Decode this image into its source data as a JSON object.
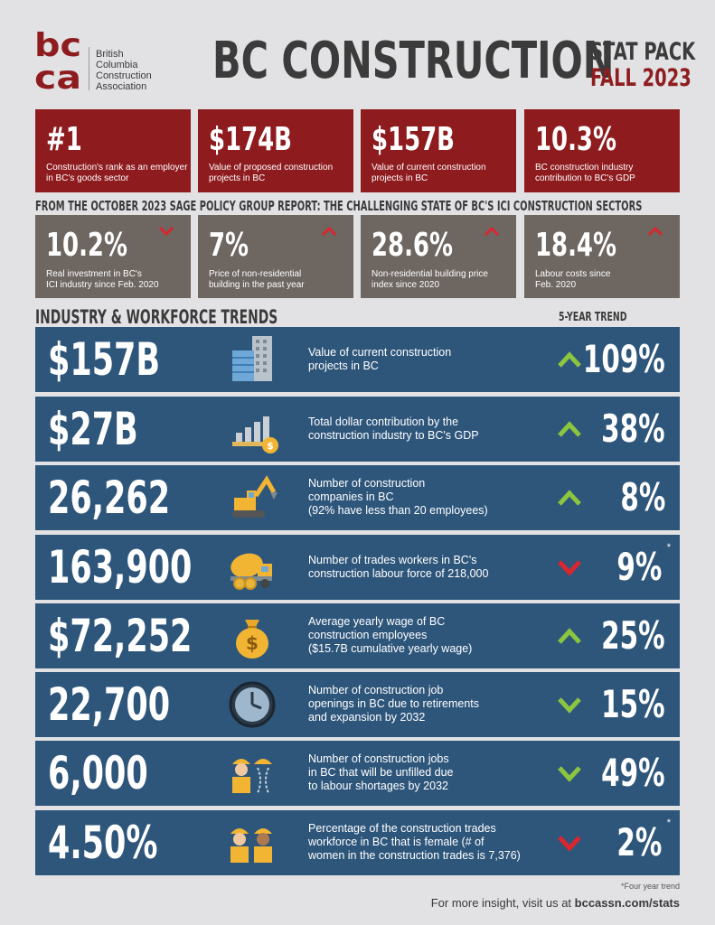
{
  "logo": {
    "mark_top": "bc",
    "mark_bottom": "ca",
    "lines": [
      "British",
      "Columbia",
      "Construction",
      "Association"
    ]
  },
  "header": {
    "title": "BC CONSTRUCTION",
    "stat_pack": "STAT PACK",
    "season": "FALL 2023"
  },
  "colors": {
    "red": "#8e1c1f",
    "taupe": "#6e6661",
    "navy": "#2e567b",
    "up_green": "#8cc63f",
    "down_red": "#d9262f"
  },
  "red_stats": [
    {
      "value": "#1",
      "label": "Construction's rank as an employer in BC's goods sector"
    },
    {
      "value": "$174B",
      "label": "Value of proposed construction projects in BC"
    },
    {
      "value": "$157B",
      "label": "Value of current construction projects in BC"
    },
    {
      "value": "10.3%",
      "label": "BC construction industry contribution to BC's GDP"
    }
  ],
  "report_heading": "FROM THE OCTOBER 2023 SAGE POLICY GROUP REPORT: THE CHALLENGING STATE OF BC'S ICI CONSTRUCTION SECTORS",
  "gray_stats": [
    {
      "value": "10.2%",
      "direction": "down",
      "label_1": "Real investment in BC's",
      "label_2": "ICI industry since Feb. 2020"
    },
    {
      "value": "7%",
      "direction": "up",
      "label_1": "Price of non-residential",
      "label_2": "building in the past year"
    },
    {
      "value": "28.6%",
      "direction": "up",
      "label_1": "Non-residential building price",
      "label_2": "index since 2020"
    },
    {
      "value": "18.4%",
      "direction": "up",
      "label_1": "Labour costs since",
      "label_2": "Feb. 2020"
    }
  ],
  "trends": {
    "heading": "INDUSTRY & WORKFORCE TRENDS",
    "column_label": "5-YEAR TREND",
    "rows": [
      {
        "value": "$157B",
        "icon": "buildings-icon",
        "lines": [
          "Value of current construction",
          "projects in BC"
        ],
        "direction": "up",
        "pct": "109%",
        "star": ""
      },
      {
        "value": "$27B",
        "icon": "bar-chart-coin-icon",
        "lines": [
          "Total dollar contribution by the",
          "construction industry to BC's GDP"
        ],
        "direction": "up",
        "pct": "38%",
        "star": ""
      },
      {
        "value": "26,262",
        "icon": "excavator-icon",
        "lines": [
          "Number of construction",
          "companies in BC",
          "(92% have less than 20 employees)"
        ],
        "direction": "up",
        "pct": "8%",
        "star": ""
      },
      {
        "value": "163,900",
        "icon": "cement-mixer-icon",
        "lines": [
          "Number of trades workers in BC's",
          "construction labour force of 218,000"
        ],
        "direction": "down_red",
        "pct": "9%",
        "star": "*"
      },
      {
        "value": "$72,252",
        "icon": "money-bag-icon",
        "lines": [
          "Average yearly wage of BC",
          "construction employees",
          "($15.7B cumulative yearly wage)"
        ],
        "direction": "up",
        "pct": "25%",
        "star": ""
      },
      {
        "value": "22,700",
        "icon": "clock-icon",
        "lines": [
          "Number of construction job",
          "openings in BC due to retirements",
          "and expansion by 2032"
        ],
        "direction": "down_green",
        "pct": "15%",
        "star": ""
      },
      {
        "value": "6,000",
        "icon": "workers-icon",
        "lines": [
          "Number of construction jobs",
          "in BC that will be unfilled due",
          "to labour shortages by 2032"
        ],
        "direction": "down_green",
        "pct": "49%",
        "star": ""
      },
      {
        "value": "4.50%",
        "icon": "female-workers-icon",
        "lines": [
          "Percentage of the construction trades",
          "workforce in BC that is female (# of",
          "women in the construction trades is 7,376)"
        ],
        "direction": "down_red",
        "pct": "2%",
        "star": "*"
      }
    ]
  },
  "footnote": "*Four year trend",
  "footer": {
    "prefix": "For more insight, visit us at",
    "link": "bccassn.com/stats"
  }
}
